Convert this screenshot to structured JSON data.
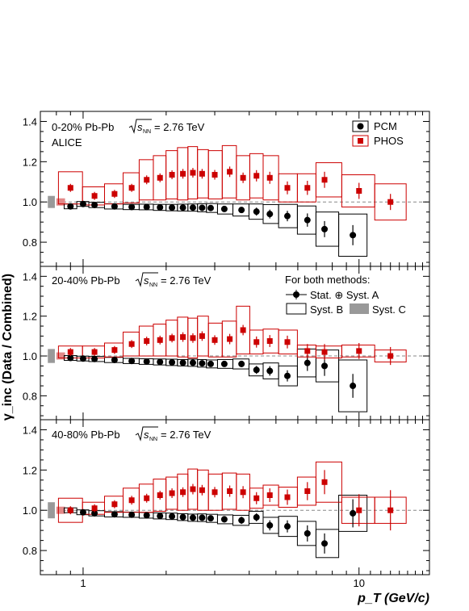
{
  "chart_data": {
    "type": "scatter",
    "x_scale": "log",
    "xlim": [
      0.7,
      18
    ],
    "ylim": [
      0.68,
      1.45
    ],
    "yticks": [
      0.8,
      1.0,
      1.2,
      1.4
    ],
    "xticks_labeled": [
      1,
      10
    ],
    "xlabel": "p_T (GeV/c)",
    "ylabel": "γ_inc (Data / Combined)",
    "reference_line": 1.0,
    "colors": {
      "pcm": "#000000",
      "phos": "#cc0000",
      "syst_c": "#999999"
    },
    "legend": {
      "pcm_label": "PCM",
      "phos_label": "PHOS",
      "header": "For both methods:",
      "stat": "Stat. ⊕ Syst. A",
      "systB": "Syst. B",
      "systC": "Syst. C"
    },
    "panels": [
      {
        "label": "0-20% Pb-Pb",
        "energy": "= 2.76 TeV",
        "experiment": "ALICE",
        "systC": {
          "pcm": 0.03,
          "phos": 0.018
        },
        "pcm": {
          "x": [
            0.9,
            1.0,
            1.1,
            1.3,
            1.5,
            1.7,
            1.9,
            2.1,
            2.3,
            2.5,
            2.7,
            2.9,
            3.25,
            3.75,
            4.25,
            4.75,
            5.5,
            6.5,
            7.5,
            9.5
          ],
          "y": [
            0.978,
            0.99,
            0.985,
            0.978,
            0.975,
            0.975,
            0.973,
            0.972,
            0.972,
            0.972,
            0.971,
            0.97,
            0.965,
            0.96,
            0.952,
            0.94,
            0.93,
            0.91,
            0.865,
            0.835
          ],
          "err": [
            0.01,
            0.012,
            0.01,
            0.01,
            0.01,
            0.01,
            0.01,
            0.01,
            0.01,
            0.01,
            0.01,
            0.012,
            0.014,
            0.015,
            0.02,
            0.022,
            0.026,
            0.033,
            0.04,
            0.05
          ],
          "syst": [
            0.012,
            0.012,
            0.013,
            0.013,
            0.013,
            0.014,
            0.015,
            0.016,
            0.017,
            0.018,
            0.02,
            0.022,
            0.025,
            0.03,
            0.038,
            0.047,
            0.058,
            0.07,
            0.085,
            0.105
          ]
        },
        "phos": {
          "x": [
            0.9,
            1.1,
            1.3,
            1.5,
            1.7,
            1.9,
            2.1,
            2.3,
            2.5,
            2.7,
            3.0,
            3.4,
            3.8,
            4.25,
            4.75,
            5.5,
            6.5,
            7.5,
            10,
            13
          ],
          "y": [
            1.07,
            1.03,
            1.04,
            1.07,
            1.11,
            1.12,
            1.135,
            1.14,
            1.145,
            1.14,
            1.135,
            1.15,
            1.12,
            1.13,
            1.12,
            1.07,
            1.07,
            1.11,
            1.055,
            1.0
          ],
          "err": [
            0.02,
            0.02,
            0.02,
            0.02,
            0.022,
            0.022,
            0.022,
            0.024,
            0.024,
            0.024,
            0.024,
            0.026,
            0.026,
            0.028,
            0.03,
            0.032,
            0.035,
            0.04,
            0.04,
            0.04
          ],
          "syst": [
            0.08,
            0.045,
            0.05,
            0.075,
            0.1,
            0.11,
            0.12,
            0.13,
            0.13,
            0.12,
            0.12,
            0.13,
            0.11,
            0.11,
            0.11,
            0.07,
            0.07,
            0.085,
            0.08,
            0.09
          ]
        }
      },
      {
        "label": "20-40% Pb-Pb",
        "energy": "= 2.76 TeV",
        "systC": {
          "pcm": 0.035,
          "phos": 0.018
        },
        "pcm": {
          "x": [
            0.9,
            1.0,
            1.1,
            1.3,
            1.5,
            1.7,
            1.9,
            2.1,
            2.3,
            2.5,
            2.7,
            2.9,
            3.25,
            3.75,
            4.25,
            4.75,
            5.5,
            6.5,
            7.5,
            9.5
          ],
          "y": [
            0.99,
            0.987,
            0.985,
            0.98,
            0.975,
            0.972,
            0.97,
            0.968,
            0.966,
            0.966,
            0.963,
            0.96,
            0.96,
            0.96,
            0.93,
            0.925,
            0.9,
            0.965,
            0.95,
            0.85
          ],
          "err": [
            0.01,
            0.01,
            0.01,
            0.01,
            0.01,
            0.01,
            0.01,
            0.01,
            0.01,
            0.01,
            0.012,
            0.012,
            0.014,
            0.016,
            0.02,
            0.024,
            0.028,
            0.04,
            0.05,
            0.06
          ],
          "syst": [
            0.012,
            0.012,
            0.013,
            0.013,
            0.013,
            0.014,
            0.015,
            0.016,
            0.016,
            0.018,
            0.019,
            0.02,
            0.022,
            0.025,
            0.03,
            0.04,
            0.05,
            0.07,
            0.08,
            0.13
          ]
        },
        "phos": {
          "x": [
            0.9,
            1.1,
            1.3,
            1.5,
            1.7,
            1.9,
            2.1,
            2.3,
            2.5,
            2.7,
            3.0,
            3.4,
            3.8,
            4.25,
            4.75,
            5.5,
            6.5,
            7.5,
            10,
            13
          ],
          "y": [
            1.02,
            1.02,
            1.03,
            1.06,
            1.075,
            1.08,
            1.09,
            1.095,
            1.09,
            1.1,
            1.08,
            1.085,
            1.13,
            1.07,
            1.075,
            1.07,
            1.025,
            1.02,
            1.025,
            1.0
          ],
          "err": [
            0.02,
            0.02,
            0.02,
            0.02,
            0.022,
            0.022,
            0.022,
            0.024,
            0.024,
            0.024,
            0.024,
            0.026,
            0.026,
            0.028,
            0.03,
            0.032,
            0.035,
            0.04,
            0.04,
            0.045
          ],
          "syst": [
            0.03,
            0.03,
            0.035,
            0.06,
            0.075,
            0.08,
            0.09,
            0.1,
            0.1,
            0.1,
            0.085,
            0.09,
            0.12,
            0.06,
            0.06,
            0.06,
            0.03,
            0.03,
            0.03,
            0.03
          ]
        }
      },
      {
        "label": "40-80% Pb-Pb",
        "energy": "= 2.76 TeV",
        "systC": {
          "pcm": 0.04,
          "phos": 0.018
        },
        "pcm": {
          "x": [
            0.9,
            1.0,
            1.1,
            1.3,
            1.5,
            1.7,
            1.9,
            2.1,
            2.3,
            2.5,
            2.7,
            2.9,
            3.25,
            3.75,
            4.25,
            4.75,
            5.5,
            6.5,
            7.5,
            9.5
          ],
          "y": [
            1.0,
            0.99,
            0.985,
            0.98,
            0.978,
            0.975,
            0.972,
            0.97,
            0.966,
            0.963,
            0.963,
            0.96,
            0.955,
            0.95,
            0.965,
            0.925,
            0.92,
            0.885,
            0.835,
            0.985
          ],
          "err": [
            0.01,
            0.01,
            0.01,
            0.01,
            0.01,
            0.01,
            0.01,
            0.01,
            0.012,
            0.012,
            0.013,
            0.014,
            0.016,
            0.018,
            0.02,
            0.025,
            0.03,
            0.04,
            0.05,
            0.07
          ],
          "syst": [
            0.012,
            0.012,
            0.013,
            0.013,
            0.013,
            0.014,
            0.015,
            0.016,
            0.017,
            0.018,
            0.019,
            0.02,
            0.022,
            0.025,
            0.03,
            0.04,
            0.05,
            0.06,
            0.07,
            0.09
          ]
        },
        "phos": {
          "x": [
            0.9,
            1.1,
            1.3,
            1.5,
            1.7,
            1.9,
            2.1,
            2.3,
            2.5,
            2.7,
            3.0,
            3.4,
            3.8,
            4.25,
            4.75,
            5.5,
            6.5,
            7.5,
            10,
            13
          ],
          "y": [
            1.0,
            1.01,
            1.03,
            1.05,
            1.06,
            1.075,
            1.085,
            1.09,
            1.105,
            1.1,
            1.09,
            1.095,
            1.09,
            1.06,
            1.075,
            1.065,
            1.095,
            1.14,
            1.0,
            1.0
          ],
          "err": [
            0.02,
            0.02,
            0.02,
            0.022,
            0.022,
            0.022,
            0.024,
            0.024,
            0.026,
            0.026,
            0.026,
            0.028,
            0.03,
            0.03,
            0.034,
            0.038,
            0.045,
            0.06,
            0.08,
            0.1
          ],
          "syst": [
            0.06,
            0.03,
            0.04,
            0.06,
            0.07,
            0.08,
            0.08,
            0.09,
            0.1,
            0.1,
            0.09,
            0.09,
            0.09,
            0.05,
            0.05,
            0.05,
            0.07,
            0.1,
            0.065,
            0.065
          ]
        }
      }
    ]
  }
}
